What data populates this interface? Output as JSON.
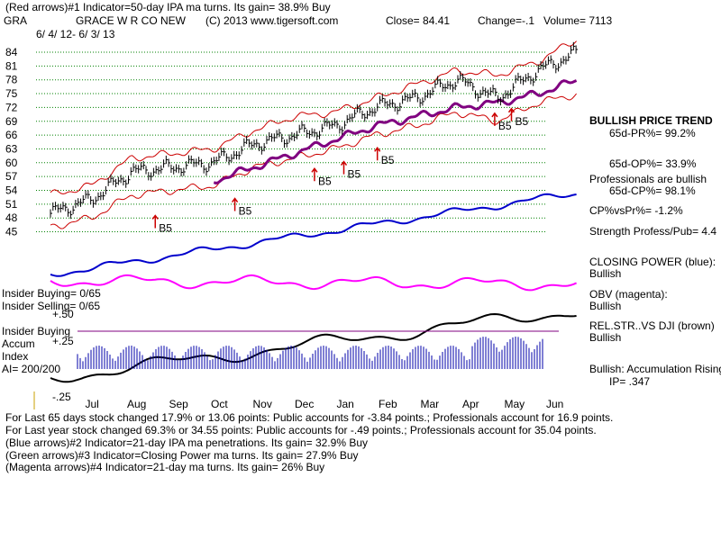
{
  "header": {
    "line1": "(Red arrows)#1 Indicator=50-day IPA ma turns. Its gain= 38.9% Buy",
    "ticker": "GRA",
    "company": "GRACE W R CO NEW",
    "copyright": "(C) 2013 www.tigersoft.com",
    "close": "Close=  84.41",
    "change": "Change=-.1",
    "volume": "Volume= 7113",
    "date_range": "6/ 4/ 12-  6/ 3/ 13"
  },
  "side_panel": {
    "trend_title": "BULLISH PRICE TREND",
    "pr": "65d-PR%= 99.2%",
    "op": "65d-OP%= 33.9%",
    "prof_bullish": "Professionals are bullish",
    "cp": "65d-CP%= 98.1%",
    "cpvspr": "CP%vsPr%= -1.2%",
    "strength": "Strength Profess/Pub= 4.4",
    "closing_power": "CLOSING POWER (blue):",
    "cp_state": "Bullish",
    "obv": "OBV (magenta):",
    "obv_state": "Bullish",
    "relstr": "REL.STR..VS DJI (brown)",
    "relstr_state": "Bullish",
    "accum": "Bullish: Accumulation Rising",
    "ip": "IP=  .347"
  },
  "insider": {
    "buying": "Insider Buying= 0/65",
    "selling": "Insider Selling= 0/65",
    "plus50": "+.50",
    "insider_buying_label": "Insider Buying",
    "accum": "Accum",
    "index": "Index",
    "ai": "AI= 200/200",
    "plus25": "+.25",
    "minus25": "-.25"
  },
  "footer": {
    "l1": "For Last 65 days stock changed  17.9% or  13.06 points:  Public accounts for -3.84 points.;  Professionals account for  16.9 points.",
    "l2": "For Last year stock changed  69.3% or  34.55 points:  Public accounts for -.49 points.;  Professionals account for  35.04 points.",
    "l3": "(Blue arrows)#2 Indicator=21-day IPA ma penetrations. Its gain= 32.9% Buy",
    "l4": "(Green arrows)#3 Indicator=Closing Power ma turns. Its gain= 27.9% Buy",
    "l5": "(Magenta arrows)#4 Indicator=21-day ma turns. Its gain= 26% Buy"
  },
  "colors": {
    "price_bar": "#000000",
    "band": "#cc0000",
    "ma": "#800080",
    "closing_power": "#0000cc",
    "obv": "#ff00ff",
    "relstr": "#000000",
    "accum_bar": "#0000aa",
    "grid": "#008000"
  },
  "chart_data": {
    "type": "line",
    "title": "GRACE W R CO NEW",
    "y_ticks": [
      "84",
      "81",
      "78",
      "75",
      "72",
      "69",
      "66",
      "63",
      "60",
      "57",
      "54",
      "51",
      "48",
      "45"
    ],
    "ylim": [
      45,
      86
    ],
    "x_ticks": [
      "Jul",
      "Aug",
      "Sep",
      "Oct",
      "Nov",
      "Dec",
      "Jan",
      "Feb",
      "Mar",
      "Apr",
      "May",
      "Jun"
    ],
    "signals": [
      {
        "label": "B5",
        "month": 2.5,
        "price": 45.8
      },
      {
        "label": "B5",
        "month": 4.4,
        "price": 49.5
      },
      {
        "label": "B5",
        "month": 6.3,
        "price": 56.0
      },
      {
        "label": "B5",
        "month": 7.0,
        "price": 57.5
      },
      {
        "label": "B5",
        "month": 7.8,
        "price": 60.5
      },
      {
        "label": "B5",
        "month": 10.6,
        "price": 68.0
      },
      {
        "label": "B5",
        "month": 11.0,
        "price": 69.0
      }
    ],
    "series": [
      {
        "name": "Price (monthly approx.)",
        "values": [
          49,
          52,
          58,
          59,
          60,
          64,
          66,
          68,
          72,
          74,
          78,
          74,
          80,
          84
        ]
      },
      {
        "name": "Upper band",
        "values": [
          53,
          55,
          61,
          62,
          63,
          67,
          70,
          71,
          74,
          77,
          80,
          79,
          82,
          87
        ]
      },
      {
        "name": "Lower band",
        "values": [
          46,
          48,
          53,
          54,
          55,
          59,
          61,
          63,
          66,
          68,
          71,
          69,
          73,
          75
        ]
      },
      {
        "name": "50-day MA",
        "values": [
          null,
          null,
          null,
          null,
          56,
          59,
          62,
          65,
          68,
          70,
          72,
          73,
          75,
          78
        ]
      }
    ]
  }
}
